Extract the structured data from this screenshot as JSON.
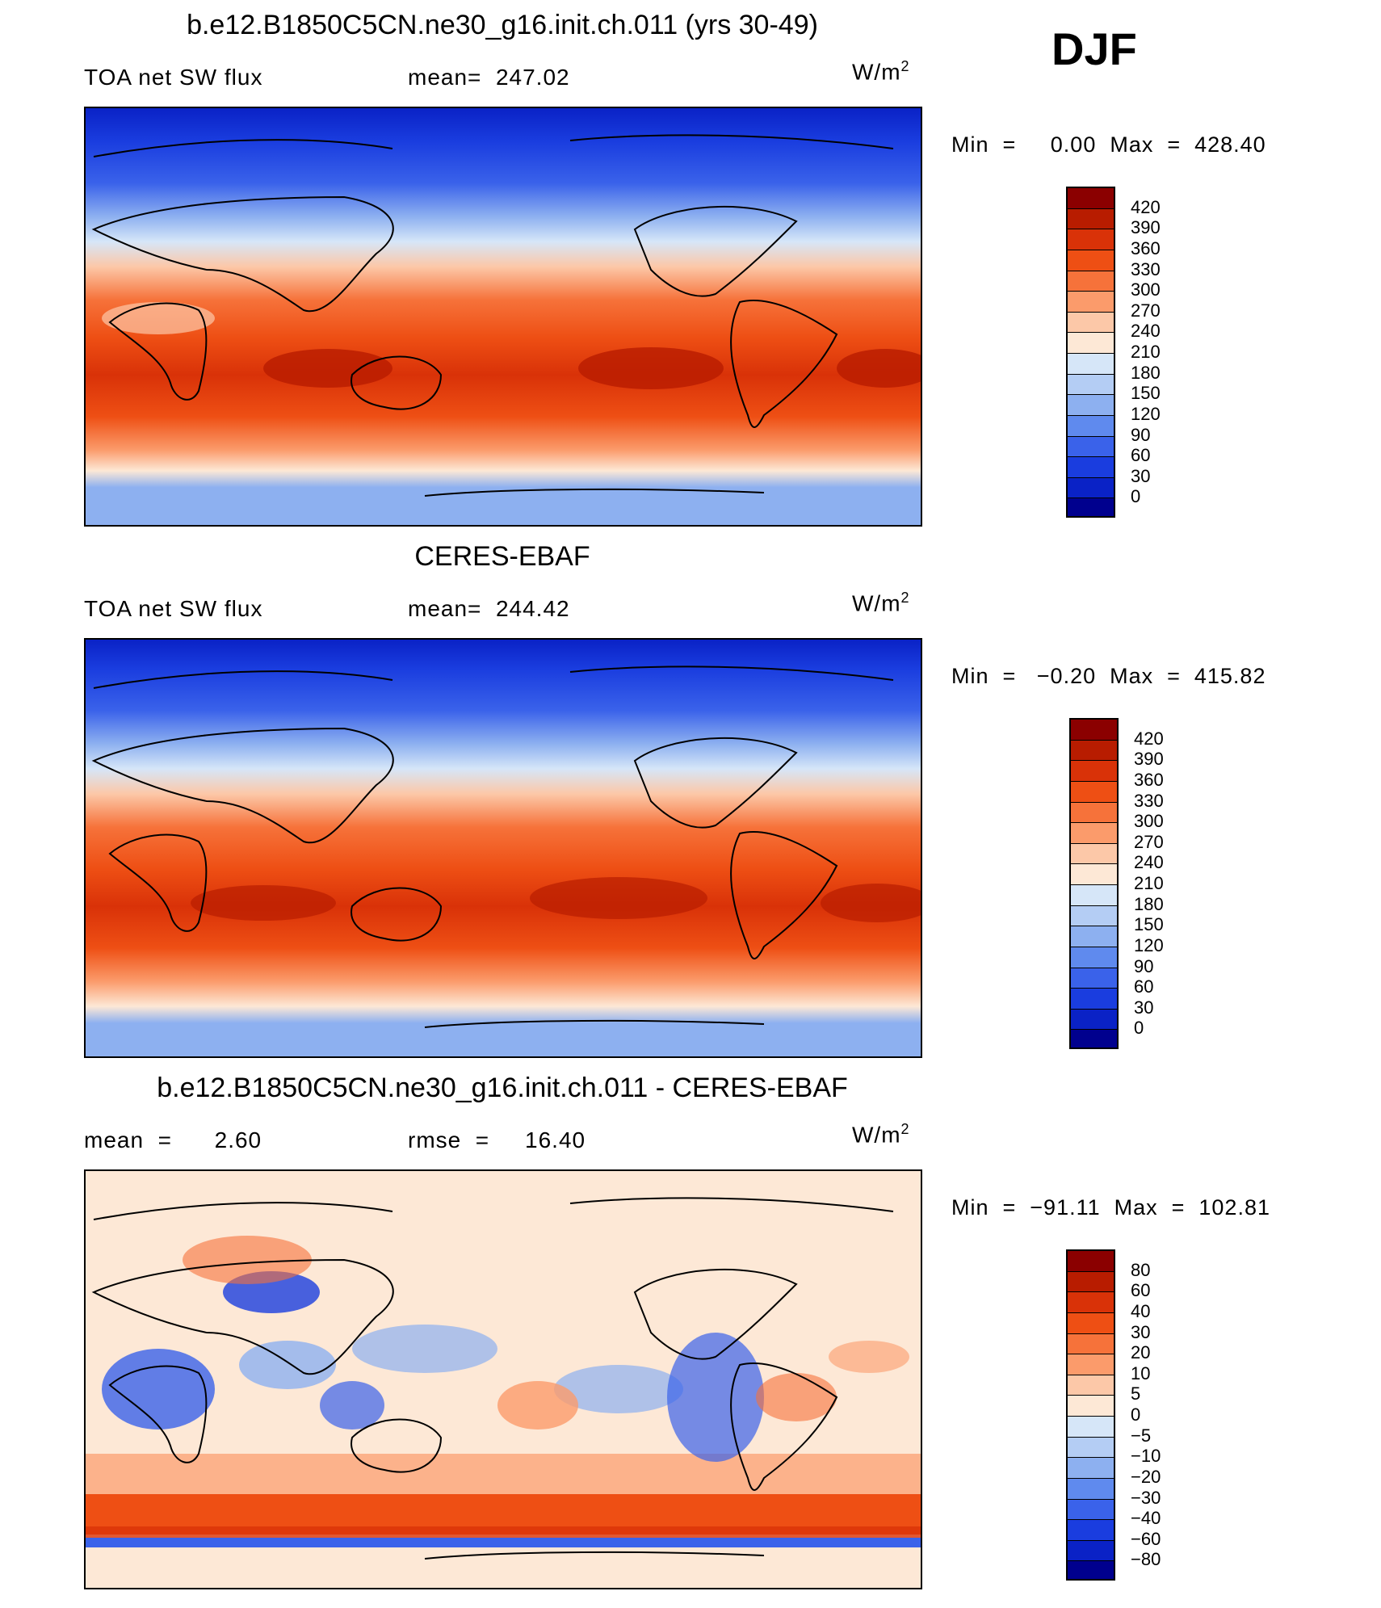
{
  "season": "DJF",
  "units_base": "W/m",
  "units_exp": "2",
  "panels": [
    {
      "id": "model",
      "title": "b.e12.B1850C5CN.ne30_g16.init.ch.011 (yrs 30-49)",
      "left_label": "TOA net SW flux",
      "mid_label": "mean=  247.02",
      "minmax": "Min  =     0.00  Max  =  428.40",
      "levels": [
        "420",
        "390",
        "360",
        "330",
        "300",
        "270",
        "240",
        "210",
        "180",
        "150",
        "120",
        "90",
        "60",
        "30",
        "0"
      ],
      "colors": [
        "#8b0000",
        "#b81c00",
        "#d93208",
        "#ee4f14",
        "#f6723a",
        "#fb9b6b",
        "#fcc8a8",
        "#fde8d6",
        "#d6e6f8",
        "#b4cdf4",
        "#8db0f0",
        "#5f8aee",
        "#3a62ea",
        "#1a3ddf",
        "#0a22c6",
        "#00008e"
      ]
    },
    {
      "id": "obs",
      "title": "CERES-EBAF",
      "left_label": "TOA net SW flux",
      "mid_label": "mean=  244.42",
      "minmax": "Min  =   −0.20  Max  =  415.82",
      "levels": [
        "420",
        "390",
        "360",
        "330",
        "300",
        "270",
        "240",
        "210",
        "180",
        "150",
        "120",
        "90",
        "60",
        "30",
        "0"
      ],
      "colors": [
        "#8b0000",
        "#b81c00",
        "#d93208",
        "#ee4f14",
        "#f6723a",
        "#fb9b6b",
        "#fcc8a8",
        "#fde8d6",
        "#d6e6f8",
        "#b4cdf4",
        "#8db0f0",
        "#5f8aee",
        "#3a62ea",
        "#1a3ddf",
        "#0a22c6",
        "#00008e"
      ]
    },
    {
      "id": "diff",
      "title": "b.e12.B1850C5CN.ne30_g16.init.ch.011 - CERES-EBAF",
      "left_label": "mean  =      2.60",
      "mid_label": "rmse  =     16.40",
      "minmax": "Min  =  −91.11  Max  =  102.81",
      "levels": [
        "80",
        "60",
        "40",
        "30",
        "20",
        "10",
        "5",
        "0",
        "−5",
        "−10",
        "−20",
        "−30",
        "−40",
        "−60",
        "−80"
      ],
      "colors": [
        "#8b0000",
        "#b81c00",
        "#d93208",
        "#ee4f14",
        "#f6723a",
        "#fb9b6b",
        "#fcc8a8",
        "#fde8d6",
        "#d6e6f8",
        "#b4cdf4",
        "#8db0f0",
        "#5f8aee",
        "#3a62ea",
        "#1a3ddf",
        "#0a22c6",
        "#00008e"
      ]
    }
  ],
  "chart_data": [
    {
      "type": "heatmap",
      "title": "b.e12.B1850C5CN.ne30_g16.init.ch.011 (yrs 30-49)",
      "variable": "TOA net SW flux",
      "units": "W/m2",
      "mean": 247.02,
      "min": 0.0,
      "max": 428.4,
      "contour_levels": [
        0,
        30,
        60,
        90,
        120,
        150,
        180,
        210,
        240,
        270,
        300,
        330,
        360,
        390,
        420
      ]
    },
    {
      "type": "heatmap",
      "title": "CERES-EBAF",
      "variable": "TOA net SW flux",
      "units": "W/m2",
      "mean": 244.42,
      "min": -0.2,
      "max": 415.82,
      "contour_levels": [
        0,
        30,
        60,
        90,
        120,
        150,
        180,
        210,
        240,
        270,
        300,
        330,
        360,
        390,
        420
      ]
    },
    {
      "type": "heatmap",
      "title": "b.e12.B1850C5CN.ne30_g16.init.ch.011 - CERES-EBAF",
      "units": "W/m2",
      "mean": 2.6,
      "rmse": 16.4,
      "min": -91.11,
      "max": 102.81,
      "contour_levels": [
        -80,
        -60,
        -40,
        -30,
        -20,
        -10,
        -5,
        0,
        5,
        10,
        20,
        30,
        40,
        60,
        80
      ]
    }
  ]
}
